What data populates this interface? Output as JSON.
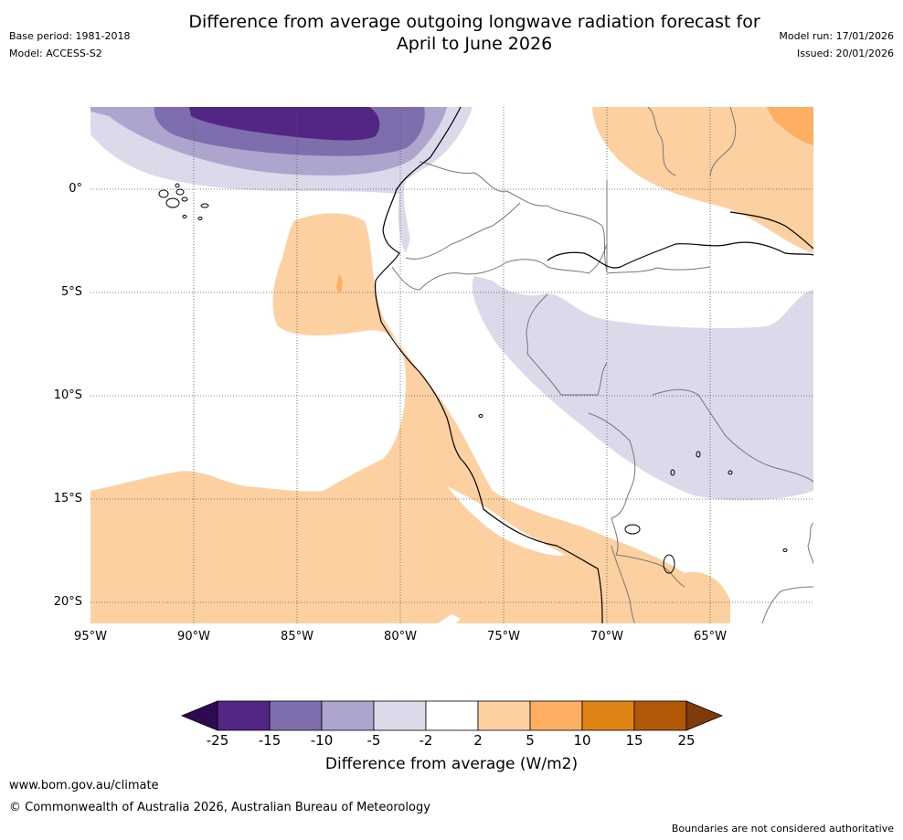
{
  "header": {
    "title_line1": "Difference from average outgoing longwave radiation forecast for",
    "title_line2": "April to June 2026",
    "base_period": "Base period: 1981-2018",
    "model": "Model: ACCESS-S2",
    "model_run": "Model run: 17/01/2026",
    "issued": "Issued: 20/01/2026"
  },
  "map": {
    "lat_labels": [
      "0°",
      "5°S",
      "10°S",
      "15°S",
      "20°S"
    ],
    "lon_labels": [
      "95°W",
      "90°W",
      "85°W",
      "80°W",
      "75°W",
      "70°W",
      "65°W"
    ],
    "extent_lon": [
      -95,
      -60
    ],
    "extent_lat": [
      -21,
      4
    ]
  },
  "colorbar": {
    "label": "Difference from average (W/m2)",
    "ticks": [
      "-25",
      "-15",
      "-10",
      "-5",
      "-2",
      "2",
      "5",
      "10",
      "15",
      "25"
    ],
    "colors": [
      "#2d0b52",
      "#532584",
      "#7e6ead",
      "#aea5cf",
      "#dadaeb",
      "#ffffff",
      "#fdd0a2",
      "#fdae61",
      "#e08214",
      "#b35806",
      "#7f3b08"
    ]
  },
  "footer": {
    "website": "www.bom.gov.au/climate",
    "copyright": "© Commonwealth of Australia 2026, Australian Bureau of Meteorology",
    "disclaimer": "Boundaries are not considered authoritative"
  }
}
